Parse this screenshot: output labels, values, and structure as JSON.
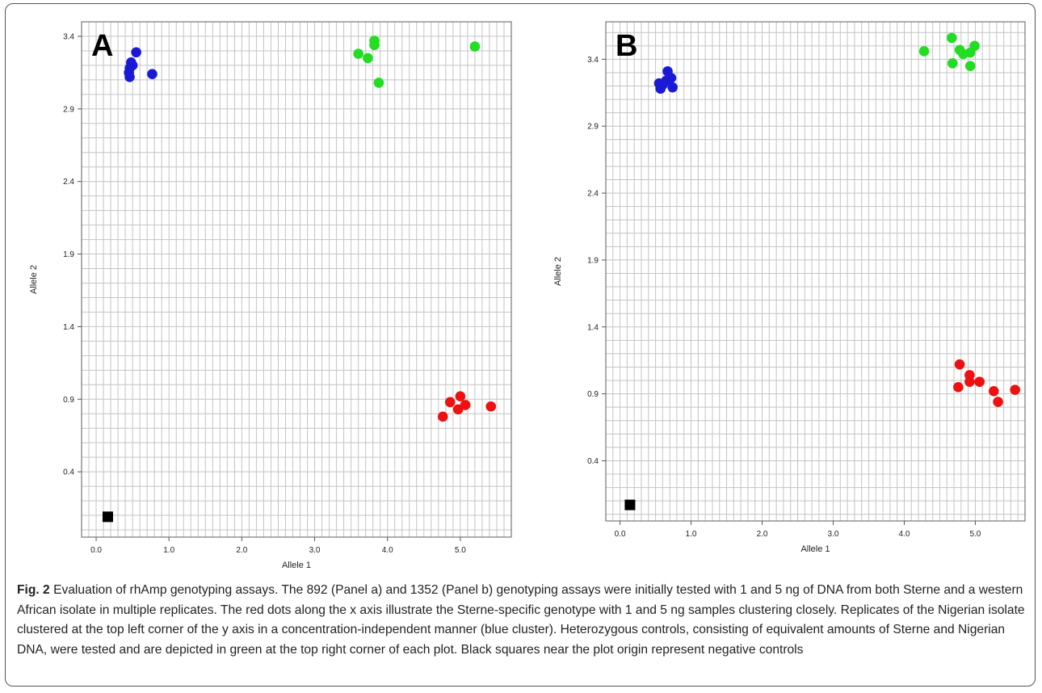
{
  "chart_data": [
    {
      "type": "scatter",
      "panel_letter": "A",
      "xlabel": "Allele 1",
      "ylabel": "Allele 2",
      "xlim": [
        -0.2,
        5.7
      ],
      "ylim": [
        -0.05,
        3.5
      ],
      "xticks": [
        "0.0",
        "1.0",
        "2.0",
        "3.0",
        "4.0",
        "5.0"
      ],
      "yticks": [
        "0.4",
        "0.9",
        "1.4",
        "1.9",
        "2.4",
        "2.9",
        "3.4"
      ],
      "grid": true,
      "series": [
        {
          "color": "#1a1ad6",
          "marker": "circle",
          "points": [
            [
              0.55,
              3.29
            ],
            [
              0.48,
              3.22
            ],
            [
              0.5,
              3.2
            ],
            [
              0.46,
              3.18
            ],
            [
              0.45,
              3.15
            ],
            [
              0.46,
              3.12
            ],
            [
              0.77,
              3.14
            ]
          ]
        },
        {
          "color": "#22dd22",
          "marker": "circle",
          "points": [
            [
              3.82,
              3.37
            ],
            [
              3.82,
              3.34
            ],
            [
              3.6,
              3.28
            ],
            [
              3.73,
              3.25
            ],
            [
              3.88,
              3.08
            ],
            [
              5.2,
              3.33
            ]
          ]
        },
        {
          "color": "#ee1111",
          "marker": "circle",
          "points": [
            [
              5.0,
              0.92
            ],
            [
              4.86,
              0.88
            ],
            [
              5.07,
              0.86
            ],
            [
              4.97,
              0.83
            ],
            [
              4.76,
              0.78
            ],
            [
              5.42,
              0.85
            ]
          ]
        },
        {
          "color": "#000000",
          "marker": "square",
          "points": [
            [
              0.16,
              0.09
            ]
          ]
        }
      ]
    },
    {
      "type": "scatter",
      "panel_letter": "B",
      "xlabel": "Allele 1",
      "ylabel": "Allele 2",
      "xlim": [
        -0.2,
        5.7
      ],
      "ylim": [
        -0.05,
        3.68
      ],
      "xticks": [
        "0.0",
        "1.0",
        "2.0",
        "3.0",
        "4.0",
        "5.0"
      ],
      "yticks": [
        "0.4",
        "0.9",
        "1.4",
        "1.9",
        "2.4",
        "2.9",
        "3.4"
      ],
      "grid": true,
      "series": [
        {
          "color": "#1a1ad6",
          "marker": "circle",
          "points": [
            [
              0.67,
              3.31
            ],
            [
              0.72,
              3.26
            ],
            [
              0.65,
              3.24
            ],
            [
              0.55,
              3.22
            ],
            [
              0.6,
              3.21
            ],
            [
              0.74,
              3.19
            ],
            [
              0.57,
              3.18
            ]
          ]
        },
        {
          "color": "#22dd22",
          "marker": "circle",
          "points": [
            [
              4.67,
              3.56
            ],
            [
              4.28,
              3.46
            ],
            [
              4.78,
              3.47
            ],
            [
              4.99,
              3.5
            ],
            [
              4.83,
              3.44
            ],
            [
              4.93,
              3.45
            ],
            [
              4.68,
              3.37
            ],
            [
              4.93,
              3.35
            ]
          ]
        },
        {
          "color": "#ee1111",
          "marker": "circle",
          "points": [
            [
              4.78,
              1.12
            ],
            [
              4.92,
              1.04
            ],
            [
              4.92,
              0.99
            ],
            [
              5.06,
              0.99
            ],
            [
              4.76,
              0.95
            ],
            [
              5.26,
              0.92
            ],
            [
              5.56,
              0.93
            ],
            [
              5.32,
              0.84
            ]
          ]
        },
        {
          "color": "#000000",
          "marker": "square",
          "points": [
            [
              0.14,
              0.07
            ]
          ]
        }
      ]
    }
  ],
  "caption": {
    "label": "Fig. 2",
    "text": " Evaluation of rhAmp genotyping assays. The 892 (Panel a) and 1352 (Panel b) genotyping assays were initially tested with 1 and 5 ng of DNA from both Sterne and a western African isolate in multiple replicates. The red dots along the x axis illustrate the Sterne-specific genotype with 1 and 5 ng samples clustering closely. Replicates of the Nigerian isolate clustered at the top left corner of the y axis in a concentration-independent manner (blue cluster). Heterozygous controls, consisting of equivalent amounts of Sterne and Nigerian DNA, were tested and are depicted in green at the top right corner of each plot. Black squares near the plot origin represent negative controls"
  }
}
